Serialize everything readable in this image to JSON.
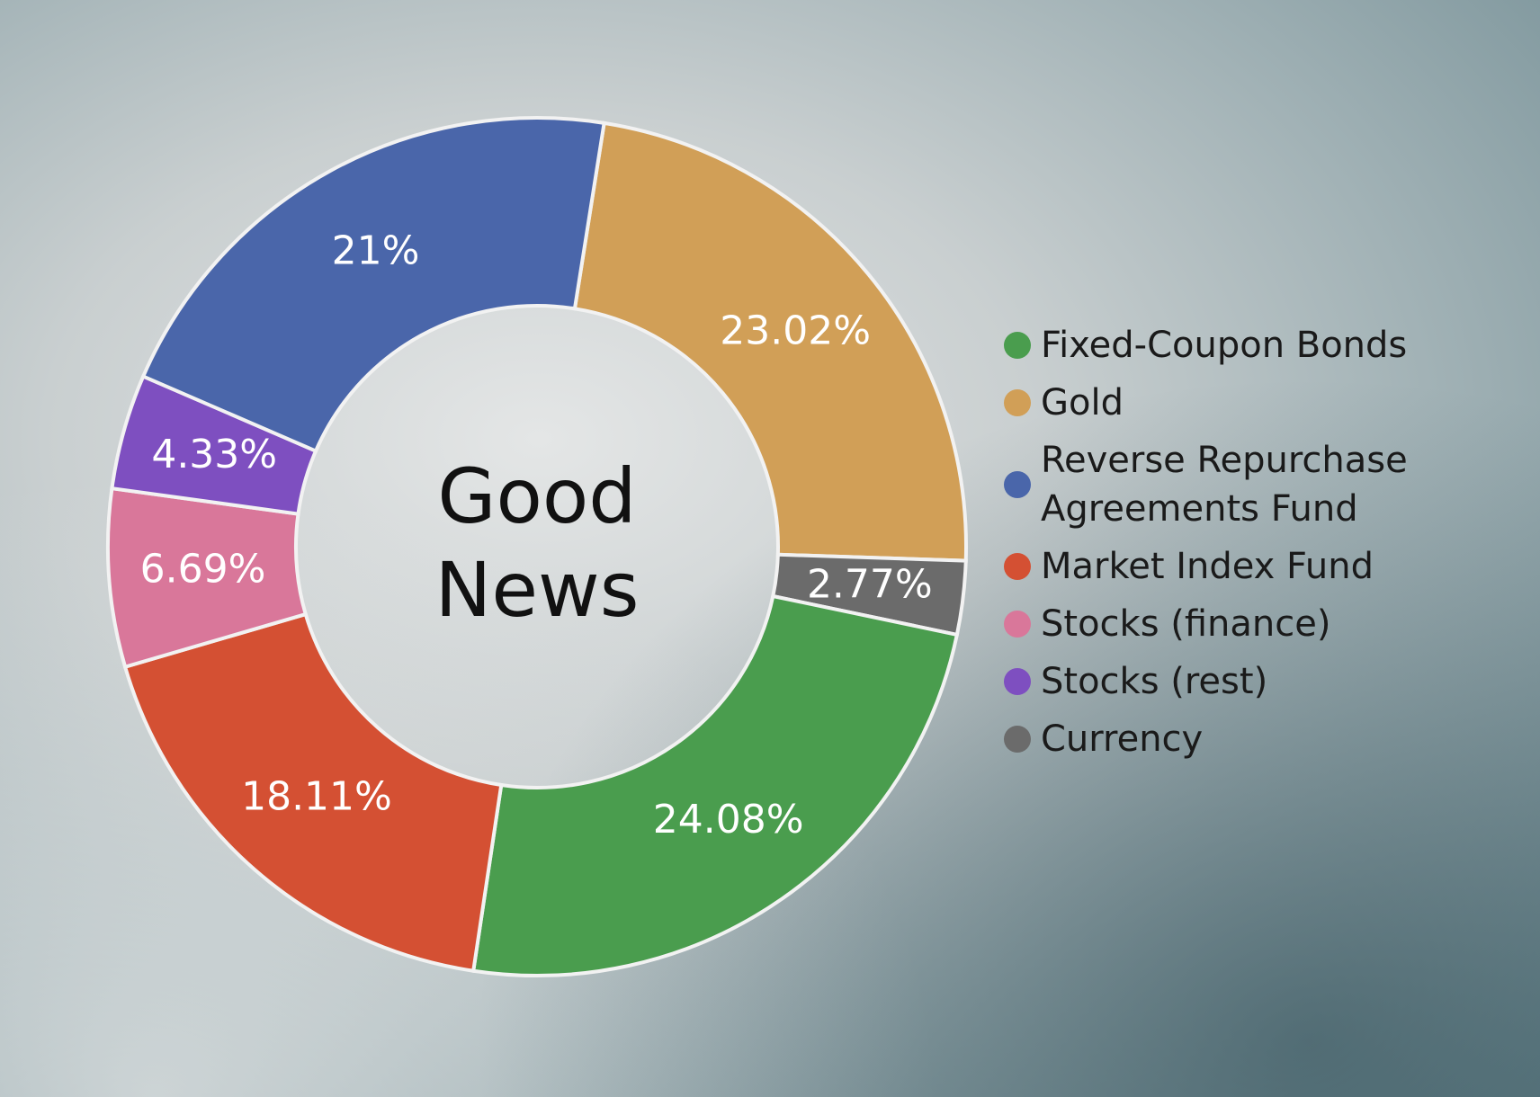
{
  "chart_data": {
    "type": "donut",
    "center_label": "Good News",
    "categories": [
      "Gold",
      "Currency",
      "Fixed-Coupon Bonds",
      "Market Index Fund",
      "Stocks (finance)",
      "Stocks (rest)",
      "Reverse Repurchase Agreements Fund"
    ],
    "values": [
      23.02,
      2.77,
      24.08,
      18.11,
      6.69,
      4.33,
      21
    ],
    "value_labels": [
      "23.02%",
      "2.77%",
      "24.08%",
      "18.11%",
      "6.69%",
      "4.33%",
      "21%"
    ],
    "colors": [
      "#d19f57",
      "#6b6b6b",
      "#4a9d4e",
      "#d45033",
      "#d9779a",
      "#7e4fc0",
      "#4a66aa"
    ],
    "legend": "right"
  }
}
